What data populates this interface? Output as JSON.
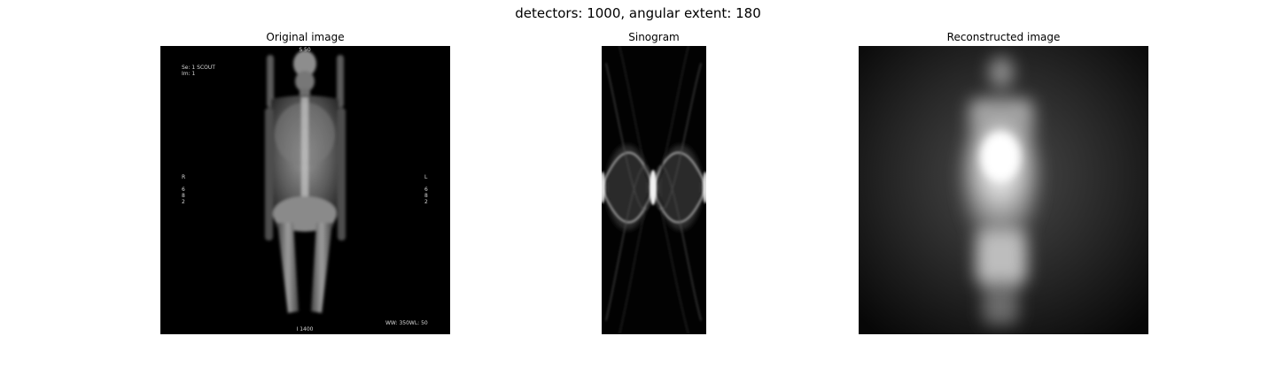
{
  "figure": {
    "suptitle": "detectors: 1000, angular extent: 180"
  },
  "panels": [
    {
      "title": "Original image",
      "overlay": {
        "top_center": "S 50",
        "series": "Se: 1 SCOUT",
        "image": "Im: 1",
        "left_side": "R",
        "left_nums": [
          "6",
          "8",
          "2"
        ],
        "right_side": "L",
        "right_nums": [
          "6",
          "8",
          "2"
        ],
        "bottom_center": "I 1400",
        "window": "WW: 350WL: 50"
      }
    },
    {
      "title": "Sinogram"
    },
    {
      "title": "Reconstructed image"
    }
  ]
}
